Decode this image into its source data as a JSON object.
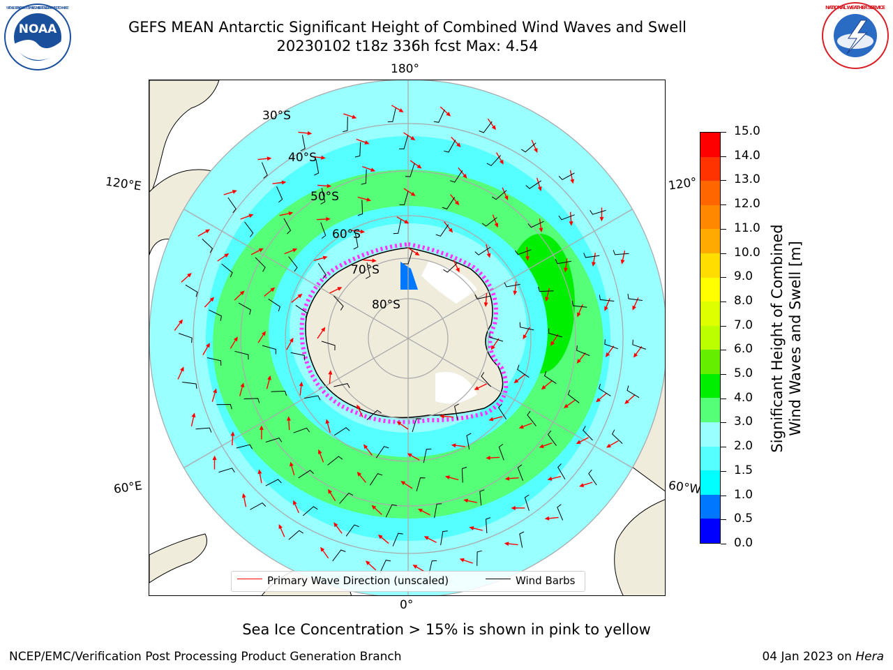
{
  "title": {
    "line1": "GEFS MEAN Antarctic Significant Height of Combined Wind Waves and Swell",
    "line2": "20230102 t18z 336h fcst   Max: 4.54"
  },
  "logos": {
    "noaa": "NOAA",
    "noaa_ring": "NATIONAL OCEANIC AND ATMOSPHERIC ADMINISTRATION · U.S. DEPARTMENT OF COMMERCE",
    "nws_ring": "NATIONAL WEATHER SERVICE"
  },
  "map": {
    "lon_labels": {
      "top": "180°",
      "bottom": "0°",
      "left_upper": "120°E",
      "left_lower": "60°E",
      "right_upper": "120°",
      "right_lower": "60°W"
    },
    "lat_labels": [
      "30°S",
      "40°S",
      "50°S",
      "60°S",
      "70°S",
      "80°S"
    ]
  },
  "legend": {
    "wave_direction": "Primary Wave Direction (unscaled)",
    "wind_barbs": "Wind Barbs",
    "wave_color": "#ff0000",
    "barb_color": "#000000"
  },
  "colorbar": {
    "title_line1": "Significant Height of Combined",
    "title_line2": "Wind Waves and Swell [m]",
    "ticks": [
      "0.0",
      "0.5",
      "1.0",
      "1.5",
      "2.0",
      "3.0",
      "4.0",
      "5.0",
      "6.0",
      "7.0",
      "8.0",
      "9.0",
      "10.0",
      "11.0",
      "12.0",
      "13.0",
      "14.0",
      "15.0"
    ],
    "colors": [
      "#0000ff",
      "#0077ff",
      "#00ffff",
      "#55ffff",
      "#99ffff",
      "#55ff77",
      "#00ee00",
      "#66ee00",
      "#bbff00",
      "#ddff00",
      "#ffff00",
      "#ffdd00",
      "#ffaa00",
      "#ff8800",
      "#ff6600",
      "#ff3300",
      "#ff0000"
    ]
  },
  "colors": {
    "land": "#efecdc",
    "ocean_low": "#99ffff",
    "ocean_mid": "#55ffff",
    "ocean_high": "#55ff77",
    "ocean_peak": "#00ee00",
    "sea_ice": "#ff33ff"
  },
  "caption": "Sea Ice Concentration > 15% is shown in pink to yellow",
  "footer": {
    "left": "NCEP/EMC/Verification Post Processing Product Generation Branch",
    "right_date": "04 Jan 2023 on ",
    "right_machine": "Hera"
  }
}
